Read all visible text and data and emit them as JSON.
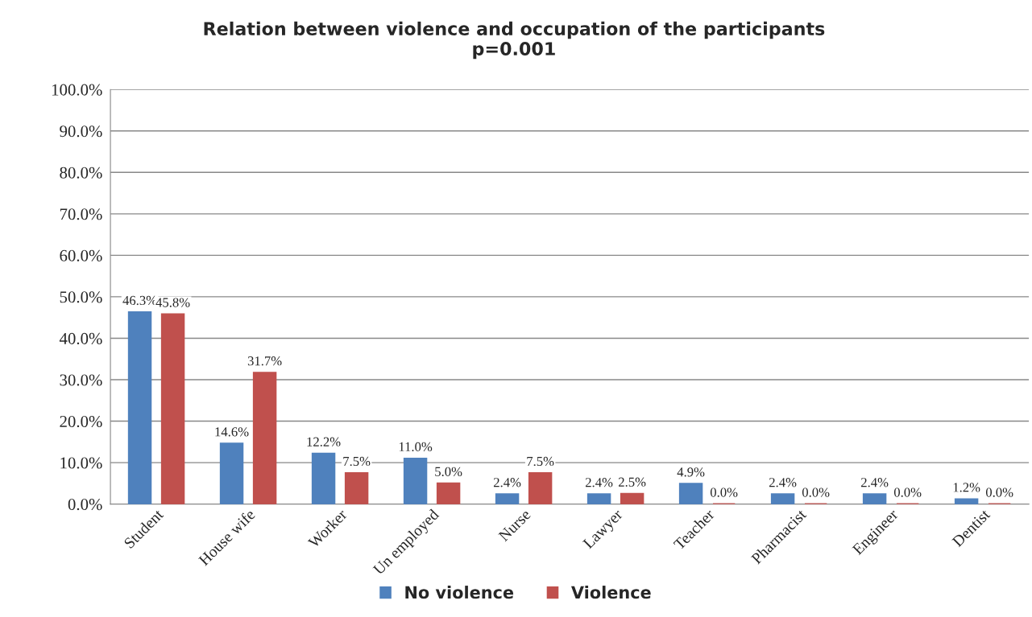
{
  "chart_data": {
    "type": "bar",
    "title": "Relation between violence and occupation of the participants",
    "subtitle": "p=0.001",
    "categories": [
      "Student",
      "House wife",
      "Worker",
      "Un employed",
      "Nurse",
      "Lawyer",
      "Teacher",
      "Pharmacist",
      "Engineer",
      "Dentist"
    ],
    "series": [
      {
        "name": "No violence",
        "color": "#4f81bd",
        "values": [
          46.3,
          14.6,
          12.2,
          11.0,
          2.4,
          2.4,
          4.9,
          2.4,
          2.4,
          1.2
        ],
        "value_labels": [
          "46.3%",
          "14.6%",
          "12.2%",
          "11.0%",
          "2.4%",
          "2.4%",
          "4.9%",
          "2.4%",
          "2.4%",
          "1.2%"
        ]
      },
      {
        "name": "Violence",
        "color": "#c0504d",
        "values": [
          45.8,
          31.7,
          7.5,
          5.0,
          7.5,
          2.5,
          0.0,
          0.0,
          0.0,
          0.0
        ],
        "value_labels": [
          "45.8%",
          "31.7%",
          "7.5%",
          "5.0%",
          "7.5%",
          "2.5%",
          "0.0%",
          "0.0%",
          "0.0%",
          "0.0%"
        ]
      }
    ],
    "ylim": [
      0,
      100
    ],
    "yticks": [
      {
        "value": 0,
        "label": "0.0%"
      },
      {
        "value": 10,
        "label": "10.0%"
      },
      {
        "value": 20,
        "label": "20.0%"
      },
      {
        "value": 30,
        "label": "30.0%"
      },
      {
        "value": 40,
        "label": "40.0%"
      },
      {
        "value": 50,
        "label": "50.0%"
      },
      {
        "value": 60,
        "label": "60.0%"
      },
      {
        "value": 70,
        "label": "70.0%"
      },
      {
        "value": 80,
        "label": "80.0%"
      },
      {
        "value": 90,
        "label": "90.0%"
      },
      {
        "value": 100,
        "label": "100.0%"
      }
    ],
    "grid": "y",
    "legend": "bottom"
  }
}
